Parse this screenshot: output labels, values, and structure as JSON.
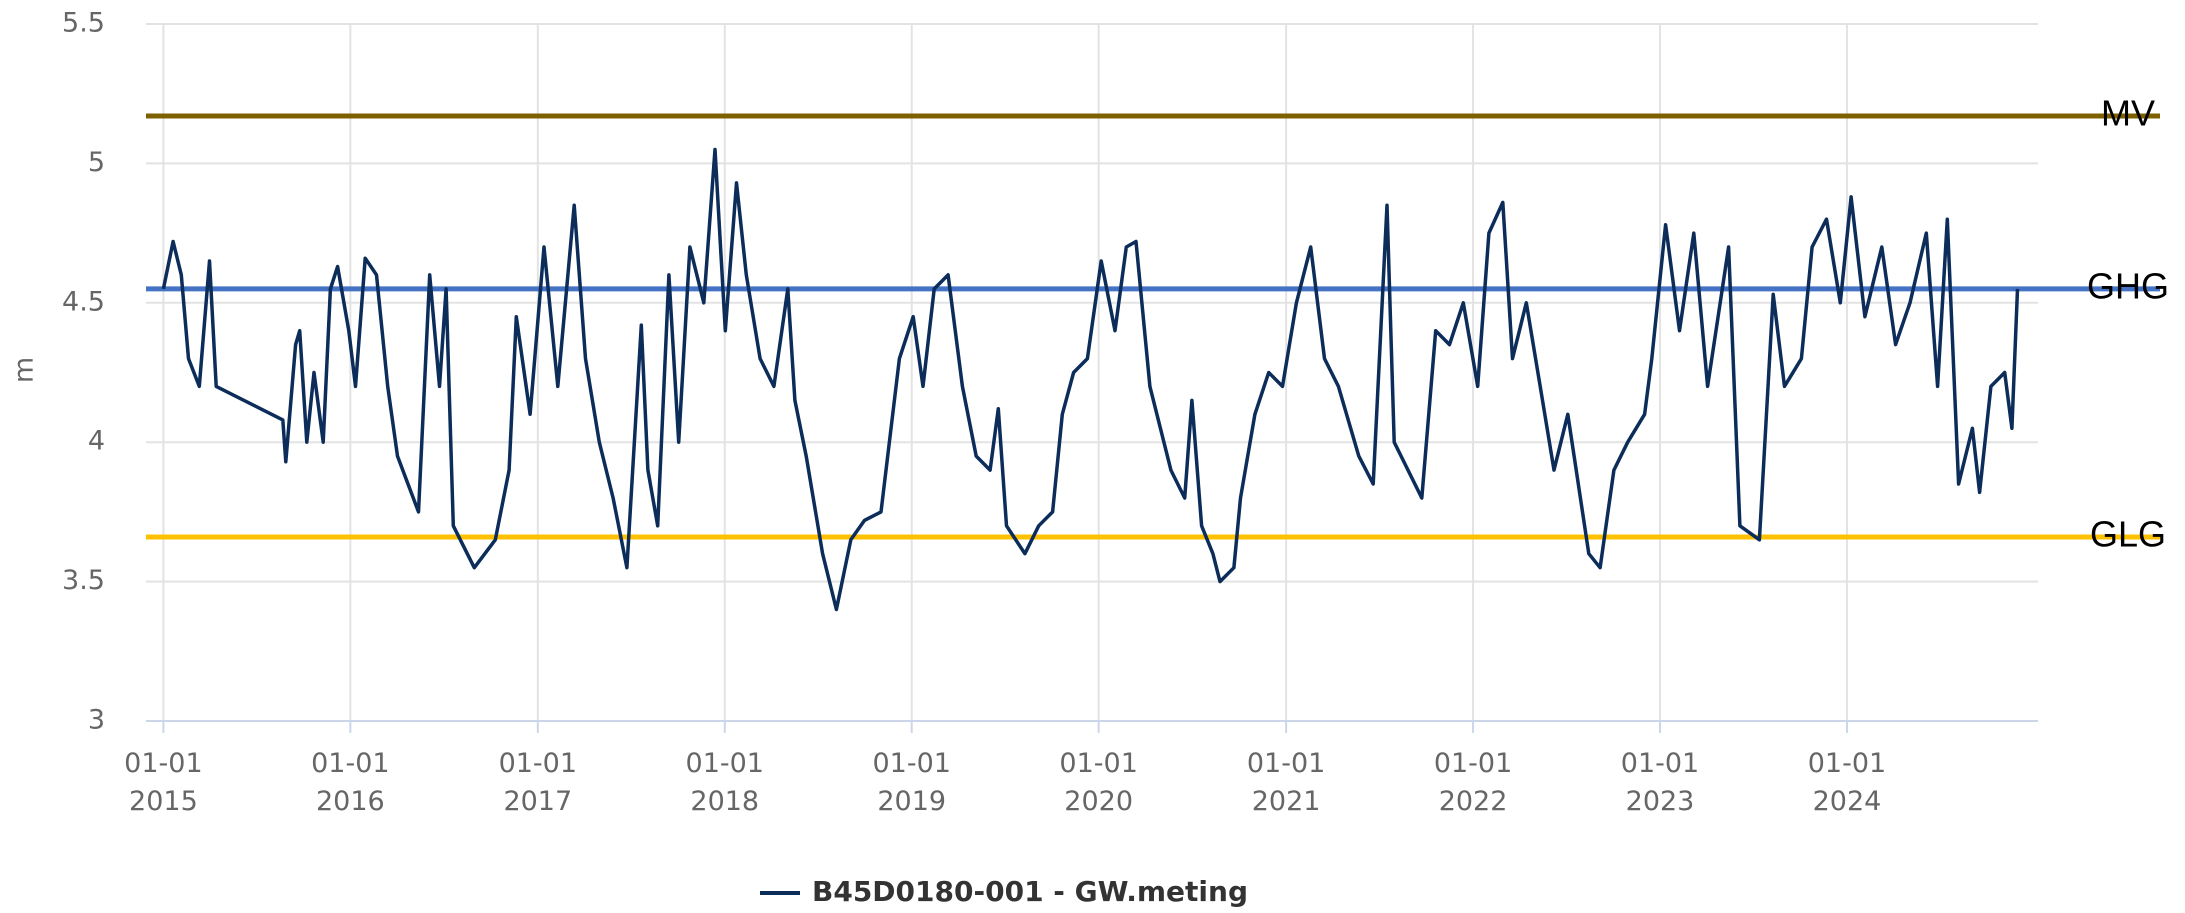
{
  "chart_data": {
    "type": "line",
    "y_label": "m",
    "ylim": [
      3,
      5.5
    ],
    "yticks": [
      3,
      3.5,
      4,
      4.5,
      5,
      5.5
    ],
    "xlim": [
      "2014-11-28",
      "2025-01-08"
    ],
    "xticks": [
      {
        "value": "2015-01-01",
        "label": "01-01\n2015"
      },
      {
        "value": "2016-01-01",
        "label": "01-01\n2016"
      },
      {
        "value": "2017-01-01",
        "label": "01-01\n2017"
      },
      {
        "value": "2018-01-01",
        "label": "01-01\n2018"
      },
      {
        "value": "2019-01-01",
        "label": "01-01\n2019"
      },
      {
        "value": "2020-01-01",
        "label": "01-01\n2020"
      },
      {
        "value": "2021-01-01",
        "label": "01-01\n2021"
      },
      {
        "value": "2022-01-01",
        "label": "01-01\n2022"
      },
      {
        "value": "2023-01-01",
        "label": "01-01\n2023"
      },
      {
        "value": "2024-01-01",
        "label": "01-01\n2024"
      }
    ],
    "grid": true,
    "x": [
      "2015-01-01",
      "2015-01-20",
      "2015-02-05",
      "2015-02-19",
      "2015-03-12",
      "2015-04-01",
      "2015-04-14",
      "2015-08-22",
      "2015-08-28",
      "2015-09-16",
      "2015-09-24",
      "2015-10-08",
      "2015-10-22",
      "2015-11-09",
      "2015-11-23",
      "2015-12-07",
      "2015-12-29",
      "2016-01-11",
      "2016-01-30",
      "2016-02-21",
      "2016-03-14",
      "2016-04-02",
      "2016-05-13",
      "2016-06-04",
      "2016-06-23",
      "2016-07-06",
      "2016-07-20",
      "2016-08-30",
      "2016-10-10",
      "2016-11-06",
      "2016-11-20",
      "2016-12-17",
      "2017-01-13",
      "2017-02-09",
      "2017-03-13",
      "2017-04-04",
      "2017-05-01",
      "2017-05-28",
      "2017-06-24",
      "2017-07-22",
      "2017-08-04",
      "2017-08-23",
      "2017-09-14",
      "2017-10-03",
      "2017-10-25",
      "2017-11-21",
      "2017-12-13",
      "2018-01-02",
      "2018-01-24",
      "2018-02-12",
      "2018-03-11",
      "2018-04-07",
      "2018-05-04",
      "2018-05-18",
      "2018-06-09",
      "2018-07-11",
      "2018-08-07",
      "2018-09-04",
      "2018-10-01",
      "2018-11-02",
      "2018-12-08",
      "2019-01-04",
      "2019-01-23",
      "2019-02-14",
      "2019-03-13",
      "2019-04-10",
      "2019-05-07",
      "2019-06-03",
      "2019-06-19",
      "2019-07-05",
      "2019-08-10",
      "2019-09-06",
      "2019-10-03",
      "2019-10-22",
      "2019-11-13",
      "2019-12-10",
      "2020-01-06",
      "2020-02-02",
      "2020-02-24",
      "2020-03-14",
      "2020-04-10",
      "2020-05-21",
      "2020-06-17",
      "2020-07-01",
      "2020-07-20",
      "2020-08-11",
      "2020-08-25",
      "2020-09-21",
      "2020-10-04",
      "2020-11-01",
      "2020-11-28",
      "2020-12-25",
      "2021-01-21",
      "2021-02-18",
      "2021-03-17",
      "2021-04-13",
      "2021-05-23",
      "2021-06-20",
      "2021-07-17",
      "2021-07-31",
      "2021-08-27",
      "2021-09-23",
      "2021-10-20",
      "2021-11-16",
      "2021-12-13",
      "2022-01-10",
      "2022-02-01",
      "2022-02-28",
      "2022-03-19",
      "2022-04-15",
      "2022-05-12",
      "2022-06-08",
      "2022-07-05",
      "2022-08-15",
      "2022-09-06",
      "2022-10-03",
      "2022-10-30",
      "2022-12-02",
      "2022-12-16",
      "2023-01-12",
      "2023-02-08",
      "2023-03-08",
      "2023-04-04",
      "2023-05-15",
      "2023-06-06",
      "2023-07-14",
      "2023-08-10",
      "2023-09-01",
      "2023-10-04",
      "2023-10-25",
      "2023-11-22",
      "2023-12-19",
      "2024-01-09",
      "2024-02-05",
      "2024-03-09",
      "2024-04-05",
      "2024-05-03",
      "2024-06-04",
      "2024-06-26",
      "2024-07-15",
      "2024-08-06",
      "2024-09-02",
      "2024-09-16",
      "2024-10-08",
      "2024-11-04",
      "2024-11-18",
      "2024-11-29"
    ],
    "series": [
      {
        "name": "B45D0180-001 - GW.meting",
        "color": "#0c2c5a",
        "values": [
          4.55,
          4.72,
          4.6,
          4.3,
          4.2,
          4.65,
          4.2,
          4.08,
          3.93,
          4.35,
          4.4,
          4.0,
          4.25,
          4.0,
          4.55,
          4.63,
          4.4,
          4.2,
          4.66,
          4.6,
          4.2,
          3.95,
          3.75,
          4.6,
          4.2,
          4.55,
          3.7,
          3.55,
          3.65,
          3.9,
          4.45,
          4.1,
          4.7,
          4.2,
          4.85,
          4.3,
          4.0,
          3.8,
          3.55,
          4.42,
          3.9,
          3.7,
          4.6,
          4.0,
          4.7,
          4.5,
          5.05,
          4.4,
          4.93,
          4.6,
          4.3,
          4.2,
          4.55,
          4.15,
          3.95,
          3.6,
          3.4,
          3.65,
          3.72,
          3.75,
          4.3,
          4.45,
          4.2,
          4.55,
          4.6,
          4.2,
          3.95,
          3.9,
          4.12,
          3.7,
          3.6,
          3.7,
          3.75,
          4.1,
          4.25,
          4.3,
          4.65,
          4.4,
          4.7,
          4.72,
          4.2,
          3.9,
          3.8,
          4.15,
          3.7,
          3.6,
          3.5,
          3.55,
          3.8,
          4.1,
          4.25,
          4.2,
          4.5,
          4.7,
          4.3,
          4.2,
          3.95,
          3.85,
          4.85,
          4.0,
          3.9,
          3.8,
          4.4,
          4.35,
          4.5,
          4.2,
          4.75,
          4.86,
          4.3,
          4.5,
          4.2,
          3.9,
          4.1,
          3.6,
          3.55,
          3.9,
          4.0,
          4.1,
          4.3,
          4.78,
          4.4,
          4.75,
          4.2,
          4.7,
          3.7,
          3.65,
          4.53,
          4.2,
          4.3,
          4.7,
          4.8,
          4.5,
          4.88,
          4.45,
          4.7,
          4.35,
          4.5,
          4.75,
          4.2,
          4.8,
          3.85,
          4.05,
          3.82,
          4.2,
          4.25,
          4.05,
          4.55
        ]
      }
    ],
    "reference_lines": [
      {
        "label": "MV",
        "value": 5.17,
        "color": "#7f6000"
      },
      {
        "label": "GHG",
        "value": 4.55,
        "color": "#4472c4"
      },
      {
        "label": "GLG",
        "value": 3.66,
        "color": "#ffc000"
      }
    ]
  }
}
